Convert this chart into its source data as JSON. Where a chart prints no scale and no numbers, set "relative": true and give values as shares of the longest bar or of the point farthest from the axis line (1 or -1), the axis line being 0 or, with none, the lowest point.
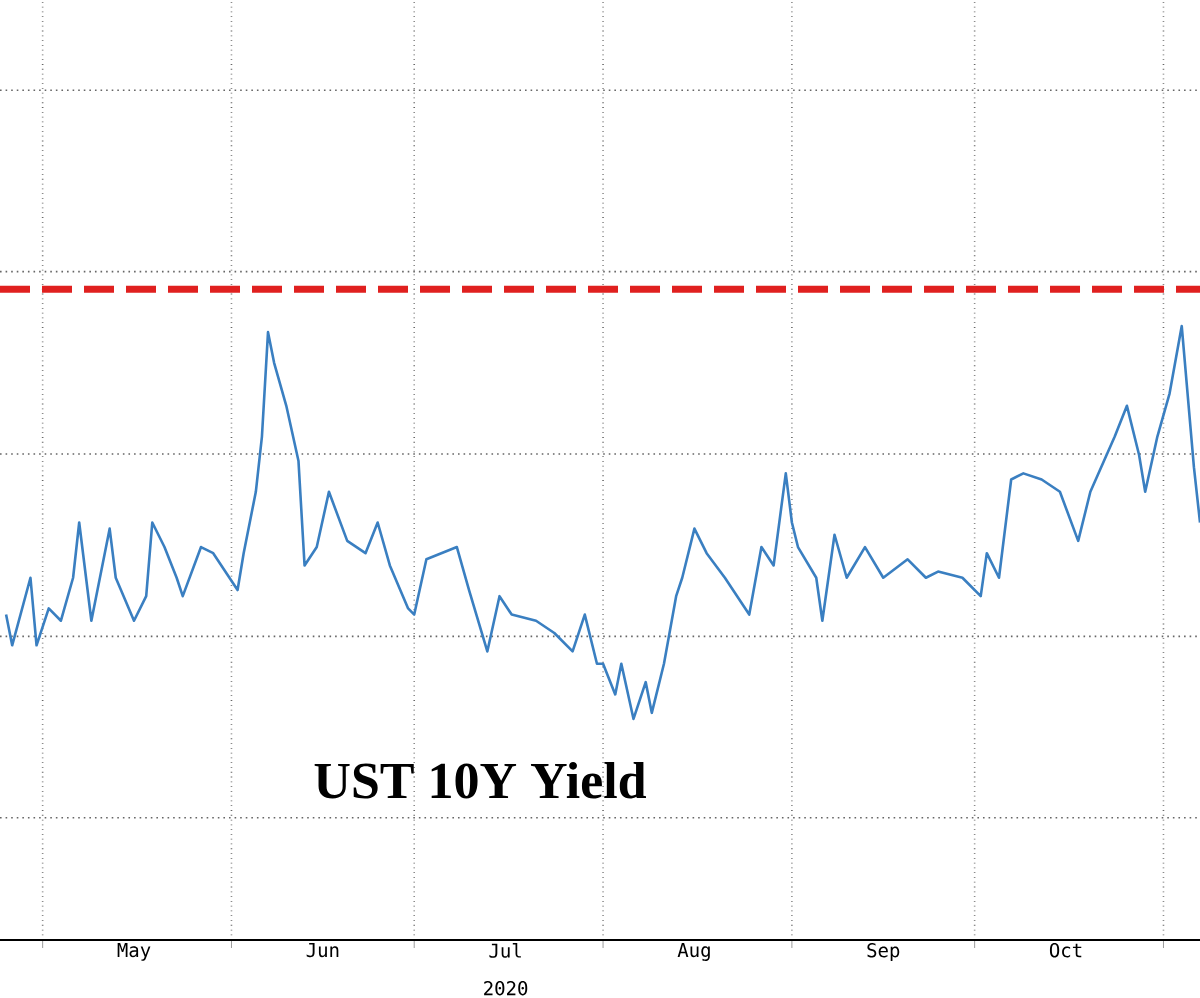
{
  "chart_data": {
    "type": "line",
    "title": "UST 10Y Yield",
    "xlabel": "2020",
    "relative": true,
    "x": [
      "2020-04-25",
      "2020-04-26",
      "2020-04-29",
      "2020-04-30",
      "2020-05-02",
      "2020-05-04",
      "2020-05-06",
      "2020-05-07",
      "2020-05-09",
      "2020-05-12",
      "2020-05-13",
      "2020-05-16",
      "2020-05-18",
      "2020-05-19",
      "2020-05-21",
      "2020-05-23",
      "2020-05-24",
      "2020-05-27",
      "2020-05-29",
      "2020-06-02",
      "2020-06-03",
      "2020-06-05",
      "2020-06-06",
      "2020-06-07",
      "2020-06-08",
      "2020-06-10",
      "2020-06-12",
      "2020-06-13",
      "2020-06-15",
      "2020-06-17",
      "2020-06-20",
      "2020-06-23",
      "2020-06-25",
      "2020-06-27",
      "2020-06-30",
      "2020-07-01",
      "2020-07-03",
      "2020-07-08",
      "2020-07-10",
      "2020-07-13",
      "2020-07-15",
      "2020-07-17",
      "2020-07-21",
      "2020-07-24",
      "2020-07-27",
      "2020-07-29",
      "2020-07-31",
      "2020-08-01",
      "2020-08-03",
      "2020-08-04",
      "2020-08-06",
      "2020-08-08",
      "2020-08-09",
      "2020-08-11",
      "2020-08-13",
      "2020-08-14",
      "2020-08-16",
      "2020-08-18",
      "2020-08-21",
      "2020-08-25",
      "2020-08-27",
      "2020-08-29",
      "2020-08-31",
      "2020-09-01",
      "2020-09-02",
      "2020-09-05",
      "2020-09-06",
      "2020-09-08",
      "2020-09-10",
      "2020-09-13",
      "2020-09-16",
      "2020-09-20",
      "2020-09-23",
      "2020-09-25",
      "2020-09-29",
      "2020-10-02",
      "2020-10-03",
      "2020-10-05",
      "2020-10-07",
      "2020-10-09",
      "2020-10-12",
      "2020-10-15",
      "2020-10-18",
      "2020-10-20",
      "2020-10-24",
      "2020-10-26",
      "2020-10-28",
      "2020-10-29",
      "2020-10-31",
      "2020-11-02",
      "2020-11-04",
      "2020-11-06",
      "2020-11-07"
    ],
    "series": [
      {
        "color": "#3a7fc1",
        "values": [
          0.53,
          0.48,
          0.59,
          0.48,
          0.54,
          0.52,
          0.59,
          0.68,
          0.52,
          0.67,
          0.59,
          0.52,
          0.56,
          0.68,
          0.64,
          0.59,
          0.56,
          0.64,
          0.63,
          0.57,
          0.63,
          0.73,
          0.82,
          0.99,
          0.94,
          0.87,
          0.78,
          0.61,
          0.64,
          0.73,
          0.65,
          0.63,
          0.68,
          0.61,
          0.54,
          0.53,
          0.62,
          0.64,
          0.57,
          0.47,
          0.56,
          0.53,
          0.52,
          0.5,
          0.47,
          0.53,
          0.45,
          0.45,
          0.4,
          0.45,
          0.36,
          0.42,
          0.37,
          0.45,
          0.56,
          0.59,
          0.67,
          0.63,
          0.59,
          0.53,
          0.64,
          0.61,
          0.76,
          0.68,
          0.64,
          0.59,
          0.52,
          0.66,
          0.59,
          0.64,
          0.59,
          0.62,
          0.59,
          0.6,
          0.59,
          0.56,
          0.63,
          0.59,
          0.75,
          0.76,
          0.75,
          0.73,
          0.65,
          0.73,
          0.82,
          0.87,
          0.79,
          0.73,
          0.82,
          0.89,
          1.0,
          0.77,
          0.68
        ]
      }
    ],
    "xlim": [
      "2020-04-24",
      "2020-11-07"
    ],
    "xticks": [
      {
        "value": "2020-05-01",
        "label": null
      },
      {
        "value": "2020-06-01",
        "label": null
      },
      {
        "value": "2020-07-01",
        "label": null
      },
      {
        "value": "2020-08-01",
        "label": null
      },
      {
        "value": "2020-09-01",
        "label": null
      },
      {
        "value": "2020-10-01",
        "label": null
      },
      {
        "value": "2020-11-01",
        "label": null
      },
      {
        "value": "2020-05-16",
        "label": "May"
      },
      {
        "value": "2020-06-16",
        "label": "Jun"
      },
      {
        "value": "2020-07-16",
        "label": "Jul"
      },
      {
        "value": "2020-08-16",
        "label": "Aug"
      },
      {
        "value": "2020-09-16",
        "label": "Sep"
      },
      {
        "value": "2020-10-16",
        "label": "Oct"
      }
    ],
    "ref_lines": [
      {
        "axis": "y",
        "value": 1.06,
        "color": "#e0201f",
        "line_style": "dashed"
      }
    ],
    "grid": true,
    "marker": "none",
    "line_style": "solid"
  }
}
